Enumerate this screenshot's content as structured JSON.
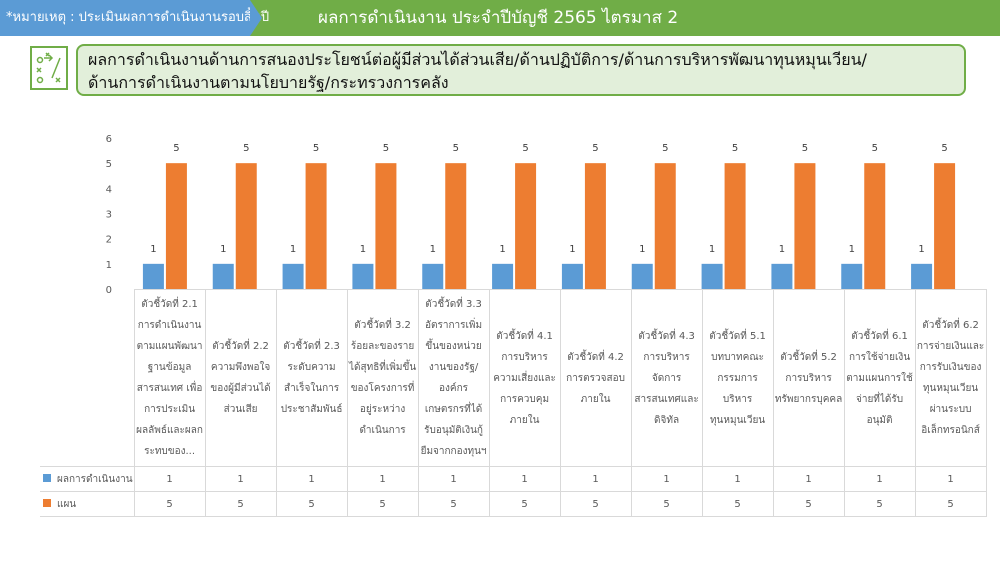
{
  "header": {
    "note": "*หมายเหตุ : ประเมินผลการดำเนินงานรอบสิ้นปี",
    "title": "ผลการดำเนินงาน ประจำปีบัญชี 2565 ไตรมาส 2"
  },
  "section_title": {
    "line1": "ผลการดำเนินงานด้านการสนองประโยชน์ต่อผู้มีส่วนได้ส่วนเสีย/ด้านปฏิบัติการ/ด้านการบริหารพัฒนาทุนหมุนเวียน/",
    "line2": "ด้านการดำเนินงานตามนโยบายรัฐ/กระทรวงการคลัง"
  },
  "chart_data": {
    "type": "bar",
    "title": "",
    "xlabel": "",
    "ylabel": "",
    "ylim": [
      0,
      6
    ],
    "yticks": [
      "0",
      "1",
      "2",
      "3",
      "4",
      "5",
      "6"
    ],
    "grid": false,
    "legend": "data-table-bottom",
    "categories": [
      "ตัวชี้วัดที่ 2.1 การดำเนินงานตามแผนพัฒนาฐานข้อมูลสารสนเทศ เพื่อการประเมินผลลัพธ์และผลกระทบของ...",
      "ตัวชี้วัดที่ 2.2 ความพึงพอใจของผู้มีส่วนได้ส่วนเสีย",
      "ตัวชี้วัดที่ 2.3 ระดับความสำเร็จในการประชาสัมพันธ์",
      "ตัวชี้วัดที่ 3.2 ร้อยละของรายได้สุทธิที่เพิ่มขึ้นของโครงการที่อยู่ระหว่างดำเนินการ",
      "ตัวชี้วัดที่ 3.3 อัตราการเพิ่มขึ้นของหน่วยงานของรัฐ/องค์กรเกษตรกรที่ได้รับอนุมัติเงินกู้ยืมจากกองทุนฯ",
      "ตัวชี้วัดที่ 4.1 การบริหารความเสี่ยงและการควบคุมภายใน",
      "ตัวชี้วัดที่ 4.2 การตรวจสอบภายใน",
      "ตัวชี้วัดที่ 4.3 การบริหารจัดการสารสนเทศและดิจิทัล",
      "ตัวชี้วัดที่ 5.1 บทบาทคณะกรรมการบริหารทุนหมุนเวียน",
      "ตัวชี้วัดที่ 5.2 การบริหารทรัพยากรบุคคล",
      "ตัวชี้วัดที่ 6.1 การใช้จ่ายเงินตามแผนการใช้จ่ายที่ได้รับอนุมัติ",
      "ตัวชี้วัดที่ 6.2 การจ่ายเงินและการรับเงินของทุนหมุนเวียนผ่านระบบอิเล็กทรอนิกส์"
    ],
    "series": [
      {
        "name": "ผลการดำเนินงาน",
        "color": "#5b9bd5",
        "values": [
          1,
          1,
          1,
          1,
          1,
          1,
          1,
          1,
          1,
          1,
          1,
          1
        ]
      },
      {
        "name": "แผน",
        "color": "#ed7d31",
        "values": [
          5,
          5,
          5,
          5,
          5,
          5,
          5,
          5,
          5,
          5,
          5,
          5
        ]
      }
    ]
  }
}
